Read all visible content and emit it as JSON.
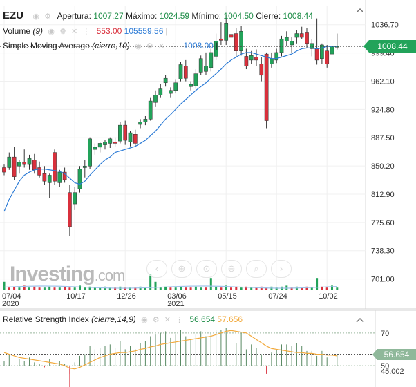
{
  "header": {
    "symbol": "EZU",
    "open_label": "Apertura:",
    "open_value": "1007.27",
    "high_label": "Máximo:",
    "high_value": "1024.59",
    "low_label": "Mínimo:",
    "low_value": "1004.50",
    "close_label": "Cierre:",
    "close_value": "1008.44"
  },
  "volume_indicator": {
    "name": "Volume",
    "params": "(9)",
    "value1": "553.00",
    "value2": "105559.56",
    "sep": "|"
  },
  "sma_indicator": {
    "name": "Simple Moving Average",
    "params": "(cierre,10)",
    "value": "1008.00",
    "sep": "|"
  },
  "rsi_indicator": {
    "name": "Relative Strength Index",
    "params": "(cierre,14,9)",
    "value1": "56.654",
    "value2": "57.656"
  },
  "current_price_tag": "1008.44",
  "rsi_tag": "56.654",
  "watermark": {
    "brand": "Investing",
    "suffix": ".com"
  },
  "nav_icons": [
    "chevron-left-icon",
    "zoom-in-icon",
    "zoom-reset-icon",
    "zoom-out-icon",
    "search-icon",
    "chevron-right-icon"
  ],
  "colors": {
    "up": "#22a35a",
    "down": "#d9303c",
    "sma": "#2c7bd6",
    "rsi_line": "#f2a93b",
    "rsi_bars": "#5a8a64",
    "volume_up": "#22a35a",
    "volume_down": "#d9303c",
    "volume_area": "#9fc3ea"
  },
  "chart_data": {
    "type": "candlestick",
    "x_tick_labels": [
      {
        "label": "07/04",
        "sub": "2020",
        "index": 0
      },
      {
        "label": "10/17",
        "sub": "",
        "index": 14
      },
      {
        "label": "12/26",
        "sub": "",
        "index": 24
      },
      {
        "label": "03/06",
        "sub": "2021",
        "index": 34
      },
      {
        "label": "05/15",
        "sub": "",
        "index": 44
      },
      {
        "label": "07/24",
        "sub": "",
        "index": 54
      },
      {
        "label": "10/02",
        "sub": "",
        "index": 64
      }
    ],
    "y_ticks": [
      "1036.70",
      "999.40",
      "962.10",
      "924.80",
      "887.50",
      "850.20",
      "812.90",
      "775.60",
      "738.30",
      "701.00"
    ],
    "ylim": [
      686,
      1062
    ],
    "candles": [
      {
        "o": 848,
        "h": 852,
        "l": 838,
        "c": 842
      },
      {
        "o": 848,
        "h": 868,
        "l": 845,
        "c": 862
      },
      {
        "o": 862,
        "h": 875,
        "l": 832,
        "c": 836
      },
      {
        "o": 850,
        "h": 858,
        "l": 840,
        "c": 855
      },
      {
        "o": 855,
        "h": 872,
        "l": 848,
        "c": 852
      },
      {
        "o": 852,
        "h": 865,
        "l": 845,
        "c": 860
      },
      {
        "o": 858,
        "h": 866,
        "l": 840,
        "c": 845
      },
      {
        "o": 848,
        "h": 856,
        "l": 835,
        "c": 838
      },
      {
        "o": 840,
        "h": 850,
        "l": 825,
        "c": 830
      },
      {
        "o": 828,
        "h": 840,
        "l": 808,
        "c": 838
      },
      {
        "o": 868,
        "h": 872,
        "l": 825,
        "c": 830
      },
      {
        "o": 828,
        "h": 845,
        "l": 822,
        "c": 842
      },
      {
        "o": 842,
        "h": 848,
        "l": 828,
        "c": 832
      },
      {
        "o": 815,
        "h": 825,
        "l": 758,
        "c": 770
      },
      {
        "o": 800,
        "h": 822,
        "l": 792,
        "c": 815
      },
      {
        "o": 820,
        "h": 850,
        "l": 815,
        "c": 846
      },
      {
        "o": 848,
        "h": 858,
        "l": 835,
        "c": 850
      },
      {
        "o": 850,
        "h": 888,
        "l": 846,
        "c": 886
      },
      {
        "o": 872,
        "h": 880,
        "l": 865,
        "c": 875
      },
      {
        "o": 875,
        "h": 882,
        "l": 868,
        "c": 880
      },
      {
        "o": 878,
        "h": 884,
        "l": 872,
        "c": 882
      },
      {
        "o": 880,
        "h": 888,
        "l": 874,
        "c": 886
      },
      {
        "o": 882,
        "h": 888,
        "l": 876,
        "c": 880
      },
      {
        "o": 883,
        "h": 908,
        "l": 880,
        "c": 904
      },
      {
        "o": 904,
        "h": 910,
        "l": 878,
        "c": 884
      },
      {
        "o": 882,
        "h": 896,
        "l": 876,
        "c": 894
      },
      {
        "o": 892,
        "h": 898,
        "l": 876,
        "c": 880
      },
      {
        "o": 905,
        "h": 912,
        "l": 900,
        "c": 908
      },
      {
        "o": 908,
        "h": 916,
        "l": 904,
        "c": 912
      },
      {
        "o": 912,
        "h": 940,
        "l": 910,
        "c": 936
      },
      {
        "o": 934,
        "h": 950,
        "l": 928,
        "c": 944
      },
      {
        "o": 944,
        "h": 958,
        "l": 940,
        "c": 952
      },
      {
        "o": 960,
        "h": 970,
        "l": 955,
        "c": 966
      },
      {
        "o": 946,
        "h": 954,
        "l": 940,
        "c": 950
      },
      {
        "o": 950,
        "h": 964,
        "l": 946,
        "c": 960
      },
      {
        "o": 965,
        "h": 988,
        "l": 962,
        "c": 984
      },
      {
        "o": 982,
        "h": 990,
        "l": 962,
        "c": 966
      },
      {
        "o": 955,
        "h": 962,
        "l": 950,
        "c": 958
      },
      {
        "o": 956,
        "h": 978,
        "l": 952,
        "c": 972
      },
      {
        "o": 974,
        "h": 996,
        "l": 970,
        "c": 992
      },
      {
        "o": 975,
        "h": 1000,
        "l": 970,
        "c": 982
      },
      {
        "o": 980,
        "h": 1005,
        "l": 975,
        "c": 1000
      },
      {
        "o": 995,
        "h": 1025,
        "l": 990,
        "c": 1015
      },
      {
        "o": 1018,
        "h": 1040,
        "l": 1010,
        "c": 1016
      },
      {
        "o": 1016,
        "h": 1050,
        "l": 1010,
        "c": 1038
      },
      {
        "o": 1024,
        "h": 1040,
        "l": 1018,
        "c": 1020
      },
      {
        "o": 1025,
        "h": 1032,
        "l": 995,
        "c": 1002
      },
      {
        "o": 1002,
        "h": 1035,
        "l": 996,
        "c": 1028
      },
      {
        "o": 995,
        "h": 1005,
        "l": 978,
        "c": 982
      },
      {
        "o": 990,
        "h": 1002,
        "l": 985,
        "c": 996
      },
      {
        "o": 994,
        "h": 1004,
        "l": 982,
        "c": 990
      },
      {
        "o": 985,
        "h": 994,
        "l": 962,
        "c": 970
      },
      {
        "o": 998,
        "h": 1000,
        "l": 900,
        "c": 910
      },
      {
        "o": 985,
        "h": 1000,
        "l": 980,
        "c": 992
      },
      {
        "o": 990,
        "h": 1005,
        "l": 986,
        "c": 1000
      },
      {
        "o": 1000,
        "h": 1022,
        "l": 995,
        "c": 1018
      },
      {
        "o": 1015,
        "h": 1028,
        "l": 1008,
        "c": 1020
      },
      {
        "o": 1010,
        "h": 1020,
        "l": 1000,
        "c": 1015
      },
      {
        "o": 1020,
        "h": 1030,
        "l": 1012,
        "c": 1025
      },
      {
        "o": 1025,
        "h": 1034,
        "l": 1018,
        "c": 1020
      },
      {
        "o": 1026,
        "h": 1032,
        "l": 1006,
        "c": 1012
      },
      {
        "o": 1005,
        "h": 1018,
        "l": 995,
        "c": 1012
      },
      {
        "o": 1005,
        "h": 1045,
        "l": 984,
        "c": 990
      },
      {
        "o": 992,
        "h": 1012,
        "l": 985,
        "c": 1010
      },
      {
        "o": 1002,
        "h": 1010,
        "l": 980,
        "c": 985
      },
      {
        "o": 998,
        "h": 1015,
        "l": 994,
        "c": 1008
      },
      {
        "o": 1007,
        "h": 1025,
        "l": 1004,
        "c": 1008
      }
    ],
    "sma": [
      790,
      806,
      818,
      830,
      838,
      842,
      845,
      846,
      846,
      845,
      844,
      843,
      840,
      834,
      828,
      826,
      830,
      838,
      845,
      852,
      858,
      862,
      868,
      870,
      872,
      874,
      876,
      880,
      884,
      890,
      896,
      904,
      912,
      918,
      925,
      932,
      938,
      944,
      950,
      955,
      960,
      966,
      972,
      978,
      985,
      990,
      994,
      998,
      1000,
      1000,
      998,
      996,
      994,
      992,
      992,
      994,
      996,
      998,
      1002,
      1005,
      1006,
      1006,
      1005,
      1006,
      1008,
      1008,
      1008
    ],
    "volume": [
      {
        "v": 8,
        "up": true
      },
      {
        "v": 2,
        "up": false
      },
      {
        "v": 3,
        "up": false
      },
      {
        "v": 2,
        "up": true
      },
      {
        "v": 4,
        "up": false
      },
      {
        "v": 2,
        "up": true
      },
      {
        "v": 3,
        "up": false
      },
      {
        "v": 2,
        "up": false
      },
      {
        "v": 2,
        "up": true
      },
      {
        "v": 3,
        "up": true
      },
      {
        "v": 2,
        "up": false
      },
      {
        "v": 2,
        "up": true
      },
      {
        "v": 3,
        "up": false
      },
      {
        "v": 2,
        "up": false
      },
      {
        "v": 2,
        "up": true
      },
      {
        "v": 4,
        "up": true
      },
      {
        "v": 2,
        "up": true
      },
      {
        "v": 3,
        "up": true
      },
      {
        "v": 2,
        "up": true
      },
      {
        "v": 2,
        "up": true
      },
      {
        "v": 3,
        "up": true
      },
      {
        "v": 2,
        "up": true
      },
      {
        "v": 2,
        "up": false
      },
      {
        "v": 3,
        "up": true
      },
      {
        "v": 2,
        "up": false
      },
      {
        "v": 2,
        "up": true
      },
      {
        "v": 2,
        "up": false
      },
      {
        "v": 3,
        "up": true
      },
      {
        "v": 2,
        "up": true
      },
      {
        "v": 16,
        "up": true
      },
      {
        "v": 8,
        "up": true
      },
      {
        "v": 2,
        "up": true
      },
      {
        "v": 3,
        "up": true
      },
      {
        "v": 2,
        "up": false
      },
      {
        "v": 2,
        "up": true
      },
      {
        "v": 3,
        "up": true
      },
      {
        "v": 2,
        "up": false
      },
      {
        "v": 2,
        "up": false
      },
      {
        "v": 3,
        "up": true
      },
      {
        "v": 2,
        "up": true
      },
      {
        "v": 2,
        "up": false
      },
      {
        "v": 12,
        "up": true
      },
      {
        "v": 3,
        "up": true
      },
      {
        "v": 2,
        "up": false
      },
      {
        "v": 4,
        "up": true
      },
      {
        "v": 2,
        "up": false
      },
      {
        "v": 3,
        "up": false
      },
      {
        "v": 2,
        "up": true
      },
      {
        "v": 3,
        "up": false
      },
      {
        "v": 2,
        "up": true
      },
      {
        "v": 2,
        "up": false
      },
      {
        "v": 3,
        "up": false
      },
      {
        "v": 2,
        "up": false
      },
      {
        "v": 3,
        "up": true
      },
      {
        "v": 2,
        "up": true
      },
      {
        "v": 3,
        "up": true
      },
      {
        "v": 4,
        "up": true
      },
      {
        "v": 2,
        "up": false
      },
      {
        "v": 3,
        "up": true
      },
      {
        "v": 2,
        "up": false
      },
      {
        "v": 3,
        "up": false
      },
      {
        "v": 2,
        "up": true
      },
      {
        "v": 12,
        "up": true
      },
      {
        "v": 3,
        "up": false
      },
      {
        "v": 2,
        "up": false
      },
      {
        "v": 4,
        "up": true
      },
      {
        "v": 2,
        "up": true
      }
    ],
    "rsi": {
      "y_ticks": [
        "70",
        "50",
        "45.002"
      ],
      "ylim": [
        42,
        75
      ],
      "levels": [
        70,
        50
      ],
      "line": [
        58,
        57,
        56,
        55,
        54.5,
        54,
        53.5,
        53,
        52.5,
        52,
        51.5,
        51,
        50,
        48.5,
        48,
        49,
        50.5,
        52,
        53.5,
        55,
        56,
        57,
        57.5,
        58,
        58,
        58.5,
        59,
        60,
        60.5,
        61.5,
        62,
        63,
        63.5,
        64,
        64.5,
        65,
        65.5,
        66,
        66.5,
        67,
        67.5,
        68,
        69,
        70,
        71,
        71.5,
        71,
        70.5,
        70,
        68,
        66,
        64,
        62,
        60.5,
        60,
        59.5,
        59,
        58.5,
        58,
        58,
        57.5,
        57.5,
        57,
        57,
        56.5,
        56.5,
        56
      ],
      "bars": [
        53,
        57,
        50,
        54,
        53,
        55,
        52,
        51,
        49,
        54,
        50,
        53,
        51,
        45,
        52,
        56,
        57,
        62,
        60,
        61,
        62,
        63,
        61,
        65,
        60,
        62,
        60,
        64,
        65,
        68,
        69,
        70,
        71,
        67,
        69,
        72,
        68,
        66,
        69,
        71,
        68,
        70,
        72,
        72,
        73,
        70,
        64,
        70,
        60,
        63,
        61,
        57,
        45.002,
        58,
        60,
        63,
        63,
        62,
        64,
        62,
        59,
        59,
        56,
        59,
        55,
        57,
        57
      ]
    }
  }
}
